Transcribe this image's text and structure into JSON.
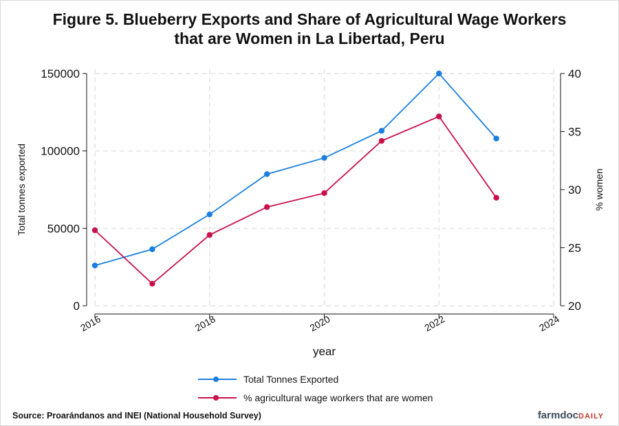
{
  "title_line1": "Figure 5. Blueberry Exports and Share of Agricultural Wage Workers",
  "title_line2": "that are Women in La Libertad, Peru",
  "source": "Source: Proarándanos and INEI (National Household Survey)",
  "brand": {
    "main": "farmdoc",
    "sub": "DAILY"
  },
  "chart_data": {
    "type": "line",
    "xlabel": "year",
    "ylabel_left": "Total tonnes exported",
    "ylabel_right": "% women",
    "xlim": [
      2016,
      2024
    ],
    "x_ticks": [
      "2016",
      "2018",
      "2020",
      "2022",
      "2024"
    ],
    "ylim_left": [
      0,
      150000
    ],
    "y_ticks_left": [
      "0",
      "50000",
      "100000",
      "150000"
    ],
    "ylim_right": [
      20,
      40
    ],
    "y_ticks_right": [
      "20",
      "25",
      "30",
      "35",
      "40"
    ],
    "grid": true,
    "legend_position": "bottom",
    "series": [
      {
        "name": "Total Tonnes Exported",
        "axis": "left",
        "color": "#1a7fe0",
        "x": [
          2016,
          2017,
          2018,
          2019,
          2020,
          2021,
          2022,
          2023
        ],
        "y": [
          26000,
          36500,
          59000,
          85000,
          95500,
          113000,
          150000,
          108000
        ]
      },
      {
        "name": "% agricultural wage workers that are women",
        "axis": "right",
        "color": "#c8104a",
        "x": [
          2016,
          2017,
          2018,
          2019,
          2020,
          2021,
          2022,
          2023
        ],
        "y": [
          26.5,
          21.9,
          26.1,
          28.5,
          29.7,
          34.2,
          36.3,
          29.3
        ]
      }
    ]
  }
}
